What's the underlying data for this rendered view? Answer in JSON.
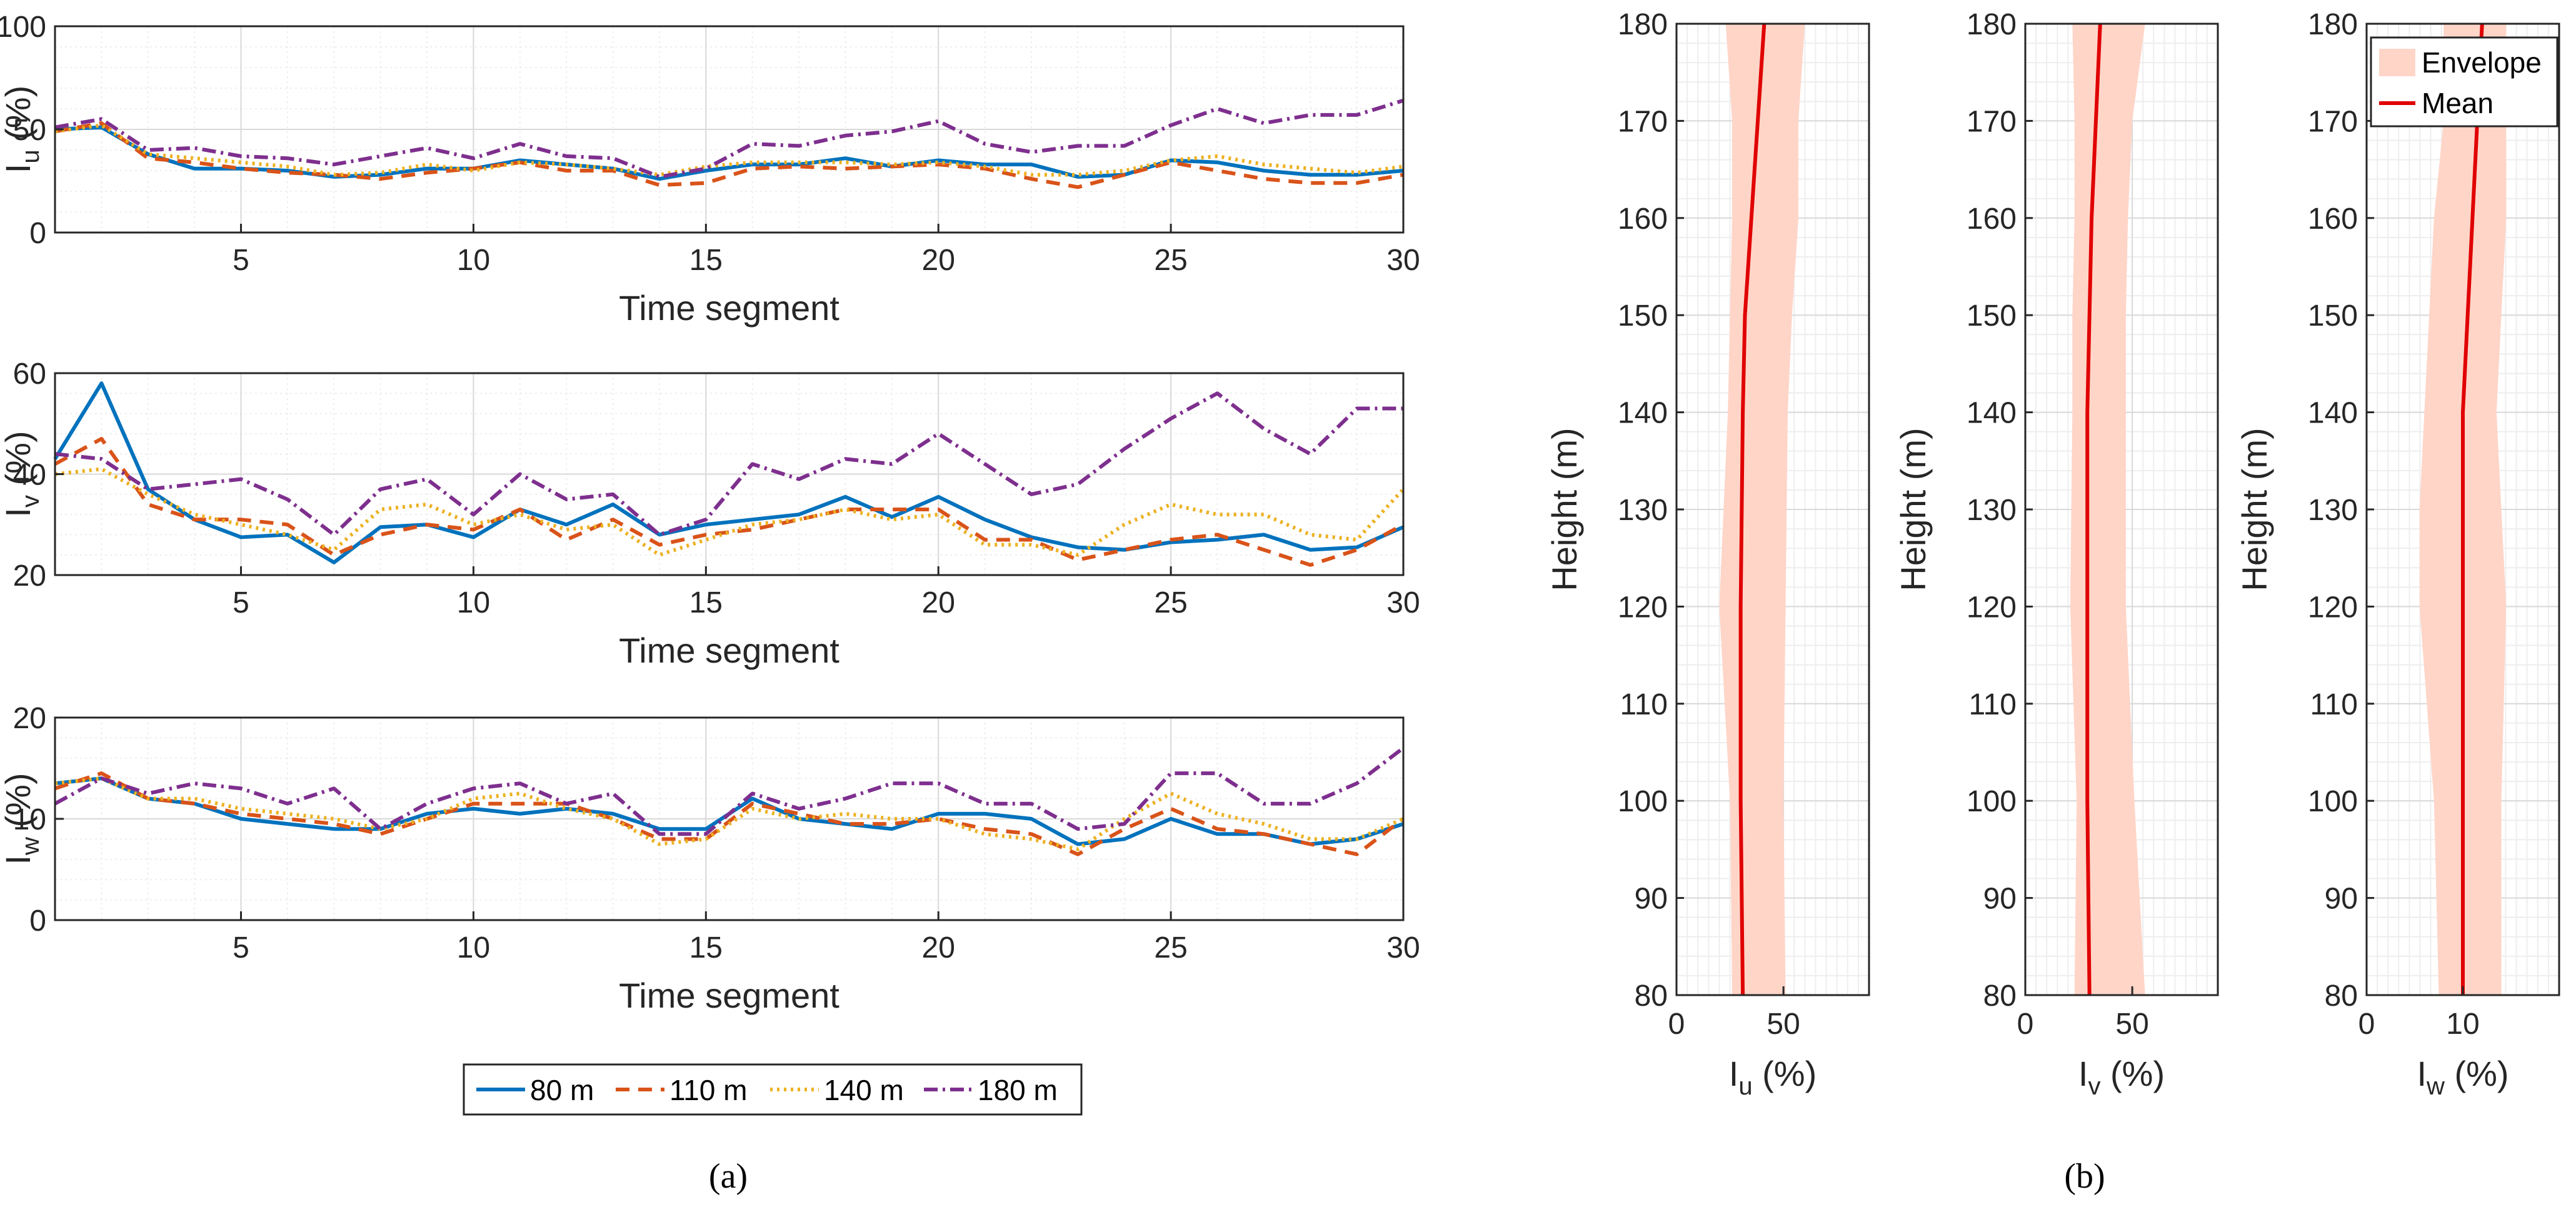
{
  "panels": {
    "a": "(a)",
    "b": "(b)"
  },
  "colors": {
    "s80": "#0072BD",
    "s110": "#D95319",
    "s140": "#EDB120",
    "s180": "#7E2F8E",
    "envelope": "#FFD5C8",
    "mean": "#E00000",
    "axis": "#262626",
    "grid_major": "#D9D9D9",
    "grid_minor": "#EEEEEE"
  },
  "legend_a": [
    "80 m",
    "110 m",
    "140 m",
    "180 m"
  ],
  "legend_b": [
    "Envelope",
    "Mean"
  ],
  "chart_data": [
    {
      "id": "ts_u",
      "type": "line",
      "title": "",
      "ylabel": "I",
      "ylabel_sub": "u",
      "ylabel_suffix": " (%)",
      "xlabel": "Time segment",
      "xlim": [
        1,
        30
      ],
      "ylim": [
        0,
        100
      ],
      "xticks": [
        5,
        10,
        15,
        20,
        25,
        30
      ],
      "yticks": [
        0,
        50,
        100
      ],
      "x": [
        1,
        2,
        3,
        4,
        5,
        6,
        7,
        8,
        9,
        10,
        11,
        12,
        13,
        14,
        15,
        16,
        17,
        18,
        19,
        20,
        21,
        22,
        23,
        24,
        25,
        26,
        27,
        28,
        29,
        30
      ],
      "series": [
        {
          "name": "80 m",
          "values": [
            50,
            51,
            38,
            31,
            31,
            30,
            27,
            28,
            31,
            31,
            35,
            33,
            31,
            26,
            30,
            33,
            33,
            36,
            32,
            35,
            33,
            33,
            27,
            28,
            35,
            34,
            30,
            28,
            28,
            30
          ]
        },
        {
          "name": "110 m",
          "values": [
            49,
            53,
            36,
            34,
            31,
            29,
            28,
            26,
            29,
            31,
            34,
            30,
            30,
            23,
            24,
            31,
            32,
            31,
            32,
            33,
            31,
            26,
            22,
            28,
            34,
            30,
            26,
            24,
            24,
            28
          ]
        },
        {
          "name": "140 m",
          "values": [
            49,
            52,
            38,
            36,
            34,
            32,
            28,
            29,
            33,
            30,
            34,
            33,
            31,
            28,
            32,
            34,
            34,
            34,
            33,
            34,
            32,
            28,
            28,
            30,
            35,
            37,
            33,
            31,
            29,
            32
          ]
        },
        {
          "name": "180 m",
          "values": [
            51,
            55,
            40,
            41,
            37,
            36,
            33,
            37,
            41,
            36,
            43,
            37,
            36,
            27,
            31,
            43,
            42,
            47,
            49,
            54,
            43,
            39,
            42,
            42,
            52,
            60,
            53,
            57,
            57,
            64
          ]
        }
      ]
    },
    {
      "id": "ts_v",
      "type": "line",
      "title": "",
      "ylabel": "I",
      "ylabel_sub": "v",
      "ylabel_suffix": " (%)",
      "xlabel": "Time segment",
      "xlim": [
        1,
        30
      ],
      "ylim": [
        20,
        60
      ],
      "xticks": [
        5,
        10,
        15,
        20,
        25,
        30
      ],
      "yticks": [
        20,
        40,
        60
      ],
      "x": [
        1,
        2,
        3,
        4,
        5,
        6,
        7,
        8,
        9,
        10,
        11,
        12,
        13,
        14,
        15,
        16,
        17,
        18,
        19,
        20,
        21,
        22,
        23,
        24,
        25,
        26,
        27,
        28,
        29,
        30
      ],
      "series": [
        {
          "name": "80 m",
          "values": [
            43,
            58,
            37,
            31,
            27.5,
            28,
            22.5,
            29.5,
            30,
            27.5,
            33,
            30,
            34,
            28,
            30,
            31,
            32,
            35.5,
            31.5,
            35.5,
            31,
            27.5,
            25.5,
            25,
            26.5,
            27,
            28,
            25,
            25.5,
            29.5
          ]
        },
        {
          "name": "110 m",
          "values": [
            42,
            47,
            34,
            31,
            31,
            30,
            24,
            28,
            30,
            29,
            33,
            27,
            31,
            26,
            28,
            29,
            31,
            33,
            33,
            33,
            27,
            27,
            23,
            25,
            27,
            28,
            25,
            22,
            25,
            30
          ]
        },
        {
          "name": "140 m",
          "values": [
            40,
            41,
            36,
            32,
            30,
            28,
            25,
            33,
            34,
            30,
            32,
            29,
            30,
            24,
            27,
            30,
            31,
            33,
            31,
            32,
            26,
            26,
            24,
            30,
            34,
            32,
            32,
            28,
            27,
            37
          ]
        },
        {
          "name": "180 m",
          "values": [
            44,
            43,
            37,
            38,
            39,
            35,
            28,
            37,
            39,
            32,
            40,
            35,
            36,
            28,
            31,
            42,
            39,
            43,
            42,
            48,
            42,
            36,
            38,
            45,
            51,
            56,
            49,
            44,
            53,
            53
          ]
        }
      ]
    },
    {
      "id": "ts_w",
      "type": "line",
      "title": "",
      "ylabel": "I",
      "ylabel_sub": "w",
      "ylabel_suffix": " (%)",
      "xlabel": "Time segment",
      "xlim": [
        1,
        30
      ],
      "ylim": [
        0,
        20
      ],
      "xticks": [
        5,
        10,
        15,
        20,
        25,
        30
      ],
      "yticks": [
        0,
        10,
        20
      ],
      "x": [
        1,
        2,
        3,
        4,
        5,
        6,
        7,
        8,
        9,
        10,
        11,
        12,
        13,
        14,
        15,
        16,
        17,
        18,
        19,
        20,
        21,
        22,
        23,
        24,
        25,
        26,
        27,
        28,
        29,
        30
      ],
      "series": [
        {
          "name": "80 m",
          "values": [
            13.5,
            14,
            12,
            11.5,
            10,
            9.5,
            9,
            9,
            10.5,
            11,
            10.5,
            11,
            10.5,
            9,
            9,
            12,
            10,
            9.5,
            9,
            10.5,
            10.5,
            10,
            7.5,
            8,
            10,
            8.5,
            8.5,
            7.5,
            8,
            9.5
          ]
        },
        {
          "name": "110 m",
          "values": [
            13,
            14.5,
            12,
            11.5,
            10.5,
            10,
            9.5,
            8.5,
            10,
            11.5,
            11.5,
            11.5,
            10,
            8,
            8,
            11.5,
            10.5,
            9.5,
            9.5,
            10,
            9,
            8.5,
            6.5,
            9,
            11,
            9,
            8.5,
            7.5,
            6.5,
            10
          ]
        },
        {
          "name": "140 m",
          "values": [
            13.5,
            14,
            12,
            12,
            11,
            10.5,
            10,
            9,
            10,
            12,
            12.5,
            11,
            10,
            7.5,
            8,
            11,
            10,
            10.5,
            10,
            10,
            8.5,
            8,
            7,
            10,
            12.5,
            10.5,
            9.5,
            8,
            8,
            10
          ]
        },
        {
          "name": "180 m",
          "values": [
            11.5,
            14,
            12.5,
            13.5,
            13,
            11.5,
            13,
            9,
            11.5,
            13,
            13.5,
            11.5,
            12.5,
            8.5,
            8.5,
            12.5,
            11,
            12,
            13.5,
            13.5,
            11.5,
            11.5,
            9,
            9.5,
            14.5,
            14.5,
            11.5,
            11.5,
            13.5,
            17
          ]
        }
      ]
    },
    {
      "id": "prof_u",
      "type": "area",
      "title": "",
      "ylabel": "Height (m)",
      "xlabel": "I",
      "xlabel_sub": "u",
      "xlabel_suffix": " (%)",
      "xlim": [
        0,
        90
      ],
      "ylim": [
        80,
        180
      ],
      "xticks": [
        0,
        50
      ],
      "yticks": [
        80,
        90,
        100,
        110,
        120,
        130,
        140,
        150,
        160,
        170,
        180
      ],
      "height": [
        80,
        100,
        120,
        140,
        150,
        160,
        170,
        180
      ],
      "envelope_low": [
        26,
        25,
        20,
        24,
        25,
        26,
        26,
        23
      ],
      "envelope_high": [
        51,
        50,
        51,
        52,
        54,
        57,
        57,
        60
      ],
      "mean": [
        31,
        30,
        30,
        31,
        32,
        35,
        38,
        41
      ]
    },
    {
      "id": "prof_v",
      "type": "area",
      "title": "",
      "ylabel": "Height (m)",
      "xlabel": "I",
      "xlabel_sub": "v",
      "xlabel_suffix": " (%)",
      "xlim": [
        0,
        90
      ],
      "ylim": [
        80,
        180
      ],
      "xticks": [
        0,
        50
      ],
      "yticks": [
        80,
        90,
        100,
        110,
        120,
        130,
        140,
        150,
        160,
        170,
        180
      ],
      "height": [
        80,
        100,
        120,
        140,
        150,
        160,
        170,
        180
      ],
      "envelope_low": [
        23,
        24,
        21,
        22,
        22,
        23,
        23,
        22
      ],
      "envelope_high": [
        56,
        51,
        47,
        47,
        47,
        48,
        50,
        56
      ],
      "mean": [
        30,
        29,
        29,
        29,
        30,
        31,
        33,
        35
      ]
    },
    {
      "id": "prof_w",
      "type": "area",
      "title": "",
      "ylabel": "Height (m)",
      "xlabel": "I",
      "xlabel_sub": "w",
      "xlabel_suffix": " (%)",
      "xlim": [
        0,
        20
      ],
      "ylim": [
        80,
        180
      ],
      "xticks": [
        0,
        10
      ],
      "yticks": [
        80,
        90,
        100,
        110,
        120,
        130,
        140,
        150,
        160,
        170,
        180
      ],
      "height": [
        80,
        100,
        120,
        130,
        140,
        150,
        160,
        170,
        180
      ],
      "envelope_low": [
        7.5,
        7,
        5.5,
        5.5,
        6,
        6.5,
        7,
        8,
        8
      ],
      "envelope_high": [
        14,
        14,
        14.5,
        14,
        13.5,
        14,
        14.5,
        14.5,
        14.5
      ],
      "mean": [
        10,
        10,
        10,
        10,
        10,
        10.5,
        11,
        11.5,
        12
      ]
    }
  ]
}
